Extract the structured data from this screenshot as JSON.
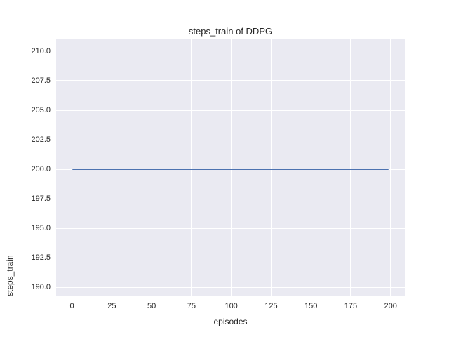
{
  "figure": {
    "background_color": "#ffffff"
  },
  "chart_data": {
    "type": "line",
    "title": "steps_train of DDPG",
    "xlabel": "episodes",
    "ylabel": "steps_train",
    "xlim": [
      -9.95,
      208.95
    ],
    "ylim": [
      189.23,
      211.07
    ],
    "x_ticks": [
      0,
      25,
      50,
      75,
      100,
      125,
      150,
      175,
      200
    ],
    "x_tick_labels": [
      "0",
      "25",
      "50",
      "75",
      "100",
      "125",
      "150",
      "175",
      "200"
    ],
    "y_ticks": [
      190.0,
      192.5,
      195.0,
      197.5,
      200.0,
      202.5,
      205.0,
      207.5,
      210.0
    ],
    "y_tick_labels": [
      "190.0",
      "192.5",
      "195.0",
      "197.5",
      "200.0",
      "202.5",
      "205.0",
      "207.5",
      "210.0"
    ],
    "grid": true,
    "legend": false,
    "plot_background_color": "#eaeaf2",
    "gridline_color": "#ffffff",
    "text_color": "#262626",
    "series": [
      {
        "name": "steps_train",
        "color": "#4c72b0",
        "x": [
          0,
          199
        ],
        "y": [
          200,
          200
        ]
      }
    ]
  }
}
